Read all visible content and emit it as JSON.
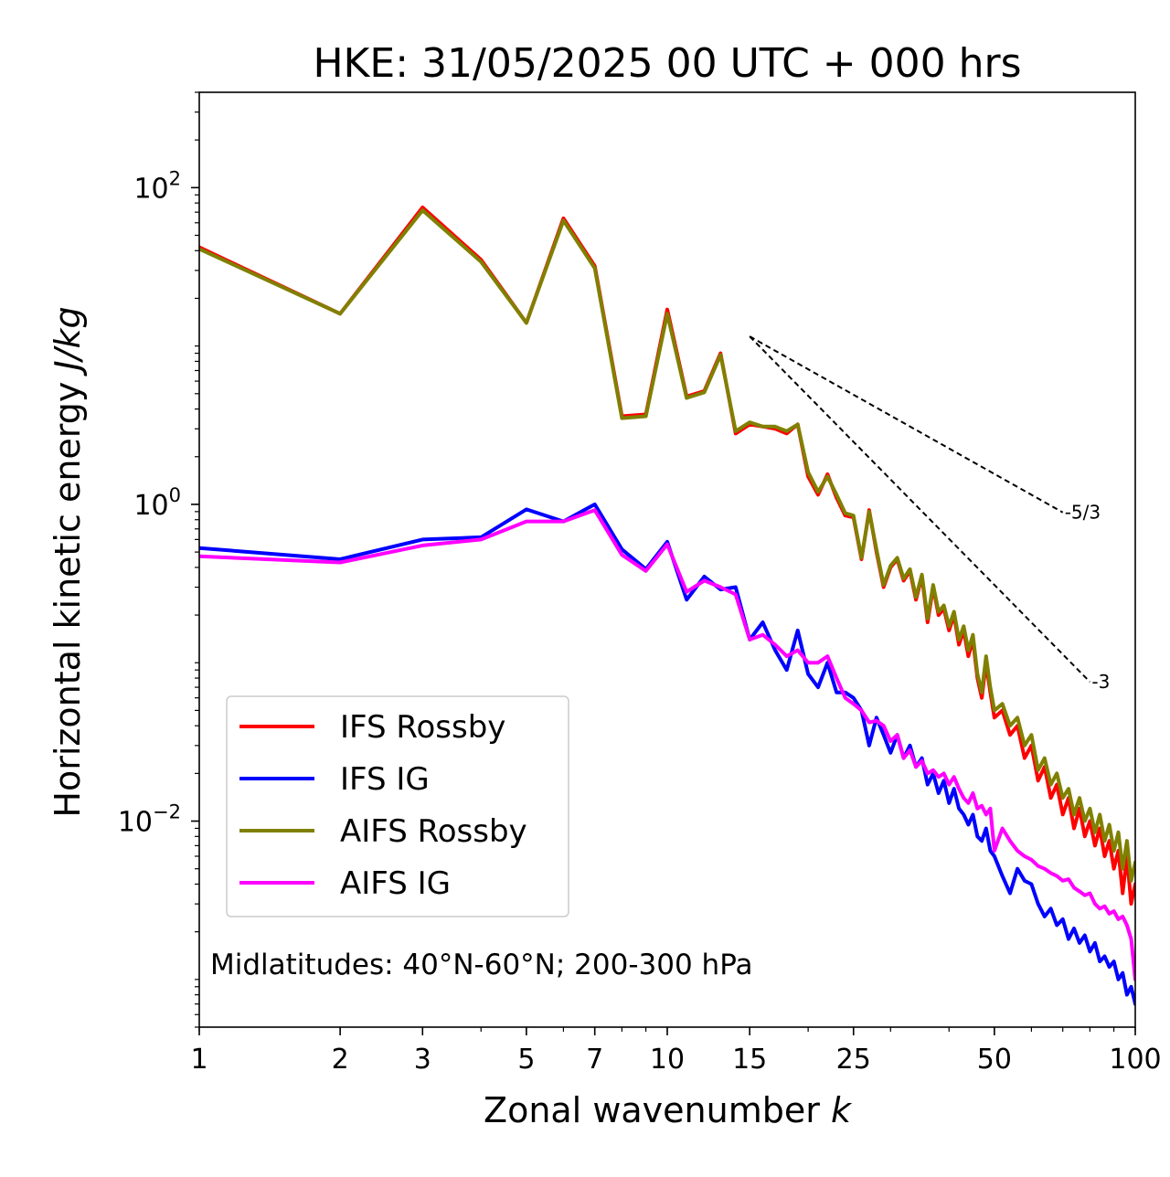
{
  "chart_data": {
    "type": "line",
    "title": "HKE: 31/05/2025 00 UTC + 000 hrs",
    "xlabel": "Zonal wavenumber ",
    "xlabel_var": "k",
    "ylabel": "Horizontal kinetic energy ",
    "ylabel_unit": "J/kg",
    "xscale": "log",
    "yscale": "log",
    "xlim": [
      1,
      100
    ],
    "ylim": [
      0.0005,
      400
    ],
    "x_ticks": [
      1,
      2,
      3,
      5,
      7,
      10,
      15,
      25,
      50,
      100
    ],
    "x_tick_labels": [
      "1",
      "2",
      "3",
      "5",
      "7",
      "10",
      "15",
      "25",
      "50",
      "100"
    ],
    "y_ticks": [
      {
        "value": 100,
        "base": "10",
        "exp": "2"
      },
      {
        "value": 1,
        "base": "10",
        "exp": "0"
      },
      {
        "value": 0.01,
        "base": "10",
        "exp": "−2"
      }
    ],
    "grid": false,
    "legend": "lower-left",
    "annotation": "Midlatitudes: 40°N-60°N; 200-300 hPa",
    "reference_lines": [
      {
        "label": "-5/3",
        "x": [
          15,
          70
        ],
        "y": [
          11.5,
          0.89
        ]
      },
      {
        "label": "-3",
        "x": [
          15,
          80
        ],
        "y": [
          11.5,
          0.0757
        ]
      }
    ],
    "series": [
      {
        "name": "IFS Rossby",
        "color": "#ff0000",
        "x": [
          1,
          2,
          3,
          4,
          5,
          6,
          7,
          8,
          9,
          10,
          11,
          12,
          13,
          14,
          15,
          16,
          17,
          18,
          19,
          20,
          21,
          22,
          23,
          24,
          25,
          26,
          27,
          28,
          29,
          30,
          31,
          32,
          33,
          34,
          35,
          36,
          37,
          38,
          39,
          40,
          41,
          42,
          43,
          44,
          45,
          46,
          47,
          48,
          49,
          50,
          52,
          54,
          56,
          58,
          60,
          62,
          64,
          66,
          68,
          70,
          72,
          74,
          76,
          78,
          80,
          82,
          84,
          86,
          88,
          90,
          92,
          94,
          96,
          98,
          100
        ],
        "y": [
          42,
          16,
          75,
          35,
          14,
          64,
          32,
          3.6,
          3.7,
          17,
          4.8,
          5.2,
          9,
          2.8,
          3.2,
          3.1,
          3.0,
          2.8,
          3.2,
          1.5,
          1.15,
          1.55,
          1.1,
          0.85,
          0.83,
          0.45,
          0.92,
          0.5,
          0.3,
          0.4,
          0.45,
          0.33,
          0.38,
          0.25,
          0.35,
          0.18,
          0.3,
          0.2,
          0.22,
          0.16,
          0.2,
          0.13,
          0.16,
          0.11,
          0.14,
          0.08,
          0.06,
          0.1,
          0.065,
          0.045,
          0.05,
          0.035,
          0.04,
          0.025,
          0.03,
          0.018,
          0.022,
          0.014,
          0.017,
          0.011,
          0.014,
          0.009,
          0.012,
          0.008,
          0.01,
          0.007,
          0.009,
          0.006,
          0.0075,
          0.005,
          0.0065,
          0.0035,
          0.006,
          0.003,
          0.004
        ]
      },
      {
        "name": "IFS IG",
        "color": "#0000ff",
        "x": [
          1,
          2,
          3,
          4,
          5,
          6,
          7,
          8,
          9,
          10,
          11,
          12,
          13,
          14,
          15,
          16,
          17,
          18,
          19,
          20,
          21,
          22,
          23,
          24,
          25,
          26,
          27,
          28,
          29,
          30,
          31,
          32,
          33,
          34,
          35,
          36,
          37,
          38,
          39,
          40,
          41,
          42,
          43,
          44,
          45,
          46,
          47,
          48,
          49,
          50,
          52,
          54,
          56,
          58,
          60,
          62,
          64,
          66,
          68,
          70,
          72,
          74,
          76,
          78,
          80,
          82,
          84,
          86,
          88,
          90,
          92,
          94,
          96,
          98,
          100
        ],
        "y": [
          0.53,
          0.45,
          0.6,
          0.62,
          0.93,
          0.78,
          1.0,
          0.52,
          0.39,
          0.58,
          0.25,
          0.35,
          0.29,
          0.3,
          0.14,
          0.18,
          0.12,
          0.09,
          0.16,
          0.085,
          0.07,
          0.1,
          0.065,
          0.065,
          0.06,
          0.05,
          0.03,
          0.045,
          0.035,
          0.027,
          0.035,
          0.025,
          0.03,
          0.022,
          0.025,
          0.017,
          0.02,
          0.015,
          0.018,
          0.013,
          0.016,
          0.012,
          0.011,
          0.0095,
          0.011,
          0.008,
          0.0075,
          0.009,
          0.0065,
          0.006,
          0.0045,
          0.0035,
          0.005,
          0.0042,
          0.004,
          0.003,
          0.0025,
          0.0028,
          0.0022,
          0.0024,
          0.0018,
          0.0021,
          0.0017,
          0.0019,
          0.0015,
          0.0017,
          0.0013,
          0.0014,
          0.0012,
          0.0013,
          0.001,
          0.0011,
          0.0008,
          0.0009,
          0.0007
        ]
      },
      {
        "name": "AIFS Rossby",
        "color": "#808000",
        "x": [
          1,
          2,
          3,
          4,
          5,
          6,
          7,
          8,
          9,
          10,
          11,
          12,
          13,
          14,
          15,
          16,
          17,
          18,
          19,
          20,
          21,
          22,
          23,
          24,
          25,
          26,
          27,
          28,
          29,
          30,
          31,
          32,
          33,
          34,
          35,
          36,
          37,
          38,
          39,
          40,
          41,
          42,
          43,
          44,
          45,
          46,
          47,
          48,
          49,
          50,
          52,
          54,
          56,
          58,
          60,
          62,
          64,
          66,
          68,
          70,
          72,
          74,
          76,
          78,
          80,
          82,
          84,
          86,
          88,
          90,
          92,
          94,
          96,
          98,
          100
        ],
        "y": [
          41,
          16,
          72,
          34,
          14,
          62,
          31,
          3.5,
          3.6,
          16,
          4.7,
          5.1,
          8.8,
          2.9,
          3.3,
          3.1,
          3.1,
          2.9,
          3.2,
          1.6,
          1.2,
          1.5,
          1.15,
          0.88,
          0.85,
          0.46,
          0.9,
          0.52,
          0.31,
          0.41,
          0.46,
          0.34,
          0.39,
          0.26,
          0.36,
          0.19,
          0.31,
          0.21,
          0.23,
          0.17,
          0.21,
          0.14,
          0.17,
          0.12,
          0.15,
          0.085,
          0.065,
          0.11,
          0.07,
          0.05,
          0.055,
          0.04,
          0.045,
          0.03,
          0.035,
          0.021,
          0.025,
          0.017,
          0.02,
          0.014,
          0.016,
          0.011,
          0.014,
          0.01,
          0.012,
          0.0085,
          0.011,
          0.0075,
          0.0095,
          0.0065,
          0.0085,
          0.005,
          0.0075,
          0.0042,
          0.0055
        ]
      },
      {
        "name": "AIFS IG",
        "color": "#ff00ff",
        "x": [
          1,
          2,
          3,
          4,
          5,
          6,
          7,
          8,
          9,
          10,
          11,
          12,
          13,
          14,
          15,
          16,
          17,
          18,
          19,
          20,
          21,
          22,
          23,
          24,
          25,
          26,
          27,
          28,
          29,
          30,
          31,
          32,
          33,
          34,
          35,
          36,
          37,
          38,
          39,
          40,
          41,
          42,
          43,
          44,
          45,
          46,
          47,
          48,
          49,
          50,
          52,
          54,
          56,
          58,
          60,
          62,
          64,
          66,
          68,
          70,
          72,
          74,
          76,
          78,
          80,
          82,
          84,
          86,
          88,
          90,
          92,
          94,
          96,
          98,
          100
        ],
        "y": [
          0.47,
          0.43,
          0.55,
          0.6,
          0.78,
          0.78,
          0.92,
          0.48,
          0.38,
          0.56,
          0.28,
          0.33,
          0.3,
          0.27,
          0.14,
          0.15,
          0.13,
          0.11,
          0.12,
          0.1,
          0.1,
          0.11,
          0.08,
          0.06,
          0.055,
          0.05,
          0.042,
          0.043,
          0.04,
          0.032,
          0.035,
          0.025,
          0.028,
          0.022,
          0.024,
          0.02,
          0.021,
          0.019,
          0.02,
          0.017,
          0.019,
          0.016,
          0.014,
          0.013,
          0.015,
          0.012,
          0.0125,
          0.011,
          0.012,
          0.0065,
          0.009,
          0.0075,
          0.0065,
          0.006,
          0.0057,
          0.0052,
          0.005,
          0.0047,
          0.0045,
          0.0042,
          0.0043,
          0.0038,
          0.0036,
          0.0034,
          0.0035,
          0.003,
          0.0028,
          0.0029,
          0.0026,
          0.0027,
          0.0024,
          0.0025,
          0.0022,
          0.0018,
          0.001
        ]
      }
    ]
  }
}
